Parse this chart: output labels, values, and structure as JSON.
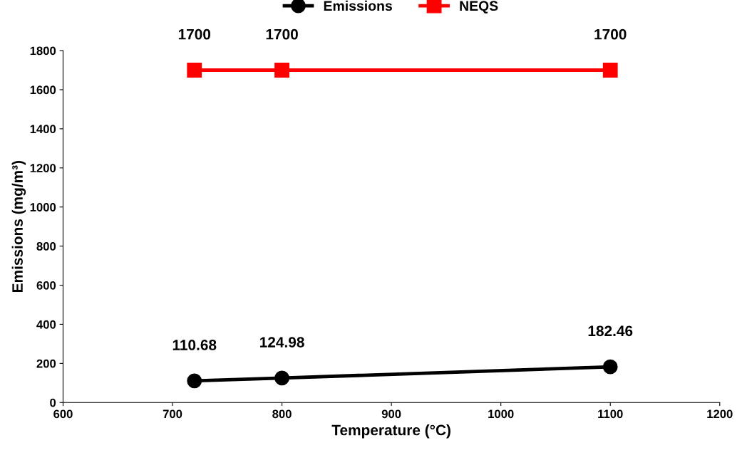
{
  "chart_data": {
    "type": "line",
    "xlabel": "Temperature (°C)",
    "ylabel": "Emissions (mg/m³)",
    "x": [
      720,
      800,
      1100
    ],
    "series": [
      {
        "name": "Emissions",
        "color": "#000000",
        "values": [
          110.68,
          124.98,
          182.46
        ],
        "marker": "circle"
      },
      {
        "name": "NEQS",
        "color": "#ff0000",
        "values": [
          1700,
          1700,
          1700
        ],
        "marker": "square"
      }
    ],
    "xlim": [
      600,
      1200
    ],
    "xticks": [
      600,
      700,
      800,
      900,
      1000,
      1100,
      1200
    ],
    "ylim": [
      0,
      1800
    ],
    "yticks": [
      0,
      200,
      400,
      600,
      800,
      1000,
      1200,
      1400,
      1600,
      1800
    ],
    "grid": false,
    "legend": "top",
    "data_labels": true,
    "line_style": "solid"
  }
}
